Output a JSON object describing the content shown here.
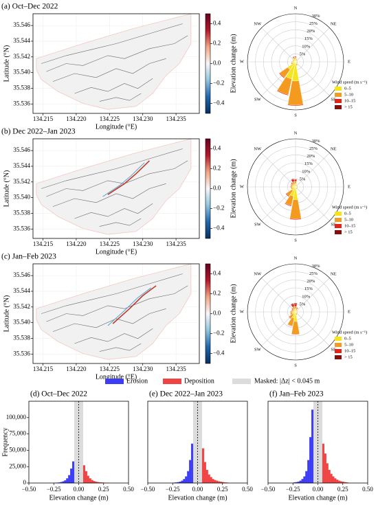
{
  "chart_data": [
    {
      "type": "map",
      "title": "(a) Oct–Dec 2022",
      "xlabel": "Longitude (°E)",
      "ylabel": "Latitude (°N)",
      "xlim": [
        134.2135,
        134.2385
      ],
      "ylim": [
        35.5348,
        35.5475
      ],
      "xticks": [
        134.215,
        {
          "value": 134.22,
          "label": "134.220"
        },
        134.225,
        {
          "value": 134.23,
          "label": "134.230"
        },
        134.235
      ],
      "yticks": [
        35.536,
        35.538,
        {
          "value": 35.54,
          "label": "35.540"
        },
        35.542,
        35.544,
        35.546
      ],
      "colorbar": {
        "label": "Elevation change (m)",
        "lim": [
          -0.5,
          0.5
        ],
        "colors": [
          "#053061",
          "#2166ac",
          "#92c5de",
          "#f7f7f7",
          "#f4a582",
          "#b2182b",
          "#67001f"
        ],
        "ticks": [
          {
            "value": -0.4,
            "label": "−0.4"
          },
          {
            "value": -0.2,
            "label": "−0.2"
          },
          {
            "value": 0,
            "label": "0.0"
          },
          0.2,
          0.4
        ]
      }
    },
    {
      "type": "map",
      "title": "(b) Dec 2022–Jan 2023",
      "xlabel": "Longitude (°E)",
      "ylabel": "Latitude (°N)",
      "xlim": [
        134.2135,
        134.2385
      ],
      "ylim": [
        35.5348,
        35.5475
      ],
      "xticks": [
        134.215,
        {
          "value": 134.22,
          "label": "134.220"
        },
        134.225,
        {
          "value": 134.23,
          "label": "134.230"
        },
        134.235
      ],
      "yticks": [
        35.536,
        35.538,
        {
          "value": 35.54,
          "label": "35.540"
        },
        35.542,
        35.544,
        35.546
      ],
      "colorbar": {
        "label": "Elevation change (m)",
        "lim": [
          -0.5,
          0.5
        ],
        "colors": [
          "#053061",
          "#2166ac",
          "#92c5de",
          "#f7f7f7",
          "#f4a582",
          "#b2182b",
          "#67001f"
        ],
        "ticks": [
          {
            "value": -0.4,
            "label": "−0.4"
          },
          {
            "value": -0.2,
            "label": "−0.2"
          },
          {
            "value": 0,
            "label": "0.0"
          },
          0.2,
          0.4
        ]
      }
    },
    {
      "type": "map",
      "title": "(c) Jan–Feb 2023",
      "xlabel": "Longitude (°E)",
      "ylabel": "Latitude (°N)",
      "xlim": [
        134.2135,
        134.2385
      ],
      "ylim": [
        35.5348,
        35.5475
      ],
      "xticks": [
        134.215,
        {
          "value": 134.22,
          "label": "134.220"
        },
        134.225,
        {
          "value": 134.23,
          "label": "134.230"
        },
        134.235
      ],
      "yticks": [
        35.536,
        35.538,
        {
          "value": 35.54,
          "label": "35.540"
        },
        35.542,
        35.544,
        35.546
      ],
      "colorbar": {
        "label": "Elevation change (m)",
        "lim": [
          -0.5,
          0.5
        ],
        "colors": [
          "#053061",
          "#2166ac",
          "#92c5de",
          "#f7f7f7",
          "#f4a582",
          "#b2182b",
          "#67001f"
        ],
        "ticks": [
          {
            "value": -0.4,
            "label": "−0.4"
          },
          {
            "value": -0.2,
            "label": "−0.2"
          },
          {
            "value": 0,
            "label": "0.0"
          },
          0.2,
          0.4
        ]
      }
    },
    {
      "type": "windrose",
      "direction_labels": [
        "N",
        "NE",
        "E",
        "SE",
        "S",
        "SW",
        "W",
        "NW"
      ],
      "rlim": [
        0,
        30
      ],
      "rticks": [
        {
          "value": 5,
          "label": "5%"
        },
        {
          "value": 10,
          "label": "10%"
        },
        {
          "value": 15,
          "label": "15%"
        },
        {
          "value": 20,
          "label": "20%"
        },
        {
          "value": 25,
          "label": "25%"
        },
        {
          "value": 30,
          "label": "30%"
        }
      ],
      "legend_title": "Wind speed (m s⁻¹)",
      "series": [
        {
          "name": "0–5",
          "color": "#f7e51c",
          "values": [
            2,
            1.5,
            1,
            1,
            1,
            1,
            1,
            1.5,
            12,
            11,
            6,
            2,
            2,
            1.5,
            1.5,
            2
          ]
        },
        {
          "name": "5–10",
          "color": "#f39a1f",
          "values": [
            1,
            0.5,
            0.5,
            0.5,
            0.5,
            0.5,
            0.5,
            1,
            15,
            10,
            6,
            1,
            0.5,
            0.5,
            0.5,
            1
          ]
        },
        {
          "name": "10–15",
          "color": "#e1241a",
          "values": [
            0.5,
            0,
            0,
            0,
            0,
            0,
            0,
            0,
            0.5,
            0.5,
            0.5,
            0,
            0,
            0,
            0,
            0.5
          ]
        },
        {
          "name": "> 15",
          "color": "#8b0a0a",
          "values": [
            0,
            0,
            0,
            0,
            0,
            0,
            0,
            0,
            0,
            0,
            0,
            0,
            0,
            0,
            0,
            0
          ]
        }
      ]
    },
    {
      "type": "windrose",
      "direction_labels": [
        "N",
        "NE",
        "E",
        "SE",
        "S",
        "SW",
        "W",
        "NW"
      ],
      "rlim": [
        0,
        30
      ],
      "rticks": [
        {
          "value": 5,
          "label": "5%"
        },
        {
          "value": 10,
          "label": "10%"
        },
        {
          "value": 15,
          "label": "15%"
        },
        {
          "value": 20,
          "label": "20%"
        },
        {
          "value": 25,
          "label": "25%"
        },
        {
          "value": 30,
          "label": "30%"
        }
      ],
      "legend_title": "Wind speed (m s⁻¹)",
      "series": [
        {
          "name": "0–5",
          "color": "#f7e51c",
          "values": [
            2,
            1,
            1,
            1,
            1,
            1,
            1,
            1,
            8,
            6,
            3,
            2,
            2,
            2,
            2,
            2
          ]
        },
        {
          "name": "5–10",
          "color": "#f39a1f",
          "values": [
            1.5,
            0.5,
            0.5,
            0.5,
            0.5,
            0.5,
            0.5,
            0.5,
            12,
            6,
            4,
            1,
            1,
            1,
            1,
            1.5
          ]
        },
        {
          "name": "10–15",
          "color": "#e1241a",
          "values": [
            1,
            0,
            0,
            0,
            0,
            0,
            0,
            0,
            0.5,
            0.5,
            0.5,
            0,
            0.3,
            0.3,
            0.5,
            1.5
          ]
        },
        {
          "name": "> 15",
          "color": "#8b0a0a",
          "values": [
            0.3,
            0,
            0,
            0,
            0,
            0,
            0,
            0,
            0,
            0,
            0,
            0,
            0,
            0,
            0,
            0.3
          ]
        }
      ]
    },
    {
      "type": "windrose",
      "direction_labels": [
        "N",
        "NE",
        "E",
        "SE",
        "S",
        "SW",
        "W",
        "NW"
      ],
      "rlim": [
        0,
        30
      ],
      "rticks": [
        {
          "value": 5,
          "label": "5%"
        },
        {
          "value": 10,
          "label": "10%"
        },
        {
          "value": 15,
          "label": "15%"
        },
        {
          "value": 20,
          "label": "20%"
        },
        {
          "value": 25,
          "label": "25%"
        },
        {
          "value": 30,
          "label": "30%"
        }
      ],
      "legend_title": "Wind speed (m s⁻¹)",
      "series": [
        {
          "name": "0–5",
          "color": "#f7e51c",
          "values": [
            2,
            1.5,
            1,
            1,
            1,
            1,
            1,
            1,
            6,
            4,
            2,
            2,
            2,
            1.5,
            1.5,
            2
          ]
        },
        {
          "name": "5–10",
          "color": "#f39a1f",
          "values": [
            1.5,
            1,
            0.5,
            0.5,
            0.5,
            0.5,
            0.5,
            1,
            8,
            5,
            3,
            1.5,
            1,
            1,
            1,
            1.5
          ]
        },
        {
          "name": "10–15",
          "color": "#e1241a",
          "values": [
            1.5,
            0.5,
            0,
            0,
            0,
            0,
            0,
            0,
            0.3,
            0.3,
            0.3,
            0,
            0.3,
            0.3,
            0.5,
            1.5
          ]
        },
        {
          "name": "> 15",
          "color": "#8b0a0a",
          "values": [
            0.5,
            0,
            0,
            0,
            0,
            0,
            0,
            0,
            0,
            0,
            0,
            0,
            0,
            0,
            0,
            0.5
          ]
        }
      ]
    },
    {
      "type": "histogram",
      "title": "(d) Oct–Dec 2022",
      "xlabel": "Elevation change (m)",
      "ylabel": "Frequency",
      "xlim": [
        -0.5,
        0.5
      ],
      "ylim": [
        0,
        125000
      ],
      "xticks": [
        {
          "value": -0.5,
          "label": "−0.50"
        },
        {
          "value": -0.25,
          "label": "−0.25"
        },
        {
          "value": 0,
          "label": "0.00"
        },
        0.25,
        {
          "value": 0.5,
          "label": "0.50"
        }
      ],
      "yticks": [
        0,
        {
          "value": 25000,
          "label": "25,000"
        },
        {
          "value": 50000,
          "label": "50,000"
        },
        {
          "value": 75000,
          "label": "75,000"
        },
        {
          "value": 100000,
          "label": "100,000"
        }
      ],
      "mask": [
        -0.045,
        0.045
      ],
      "mask_label": "Masked: |Δz| < 0.045 m",
      "reference_line": 0,
      "series": [
        {
          "name": "Erosion",
          "color": "#3d3df5",
          "bins": [
            -0.245,
            -0.225,
            -0.205,
            -0.185,
            -0.165,
            -0.145,
            -0.125,
            -0.105,
            -0.085,
            -0.065,
            -0.045
          ],
          "values": [
            300,
            500,
            800,
            1500,
            2500,
            4000,
            7000,
            12000,
            22000,
            33000
          ]
        },
        {
          "name": "Deposition",
          "color": "#f04444",
          "bins": [
            0.045,
            0.065,
            0.085,
            0.105,
            0.125,
            0.145,
            0.165,
            0.185,
            0.205,
            0.225,
            0.245,
            0.265,
            0.285,
            0.305
          ],
          "values": [
            27000,
            18000,
            11000,
            7000,
            4500,
            3000,
            2000,
            1400,
            1000,
            700,
            500,
            350,
            250
          ]
        }
      ]
    },
    {
      "type": "histogram",
      "title": "(e) Dec 2022–Jan 2023",
      "xlabel": "Elevation change (m)",
      "xlim": [
        -0.5,
        0.5
      ],
      "ylim": [
        0,
        125000
      ],
      "xticks": [
        {
          "value": -0.5,
          "label": "−0.50"
        },
        {
          "value": -0.25,
          "label": "−0.25"
        },
        {
          "value": 0,
          "label": "0.00"
        },
        0.25,
        {
          "value": 0.5,
          "label": "0.50"
        }
      ],
      "mask": [
        -0.045,
        0.045
      ],
      "reference_line": 0,
      "series": [
        {
          "name": "Erosion",
          "color": "#3d3df5",
          "bins": [
            -0.245,
            -0.225,
            -0.205,
            -0.185,
            -0.165,
            -0.145,
            -0.125,
            -0.105,
            -0.085,
            -0.065,
            -0.045
          ],
          "values": [
            500,
            800,
            1200,
            2000,
            3500,
            6000,
            10000,
            18000,
            35000,
            60000
          ]
        },
        {
          "name": "Deposition",
          "color": "#f04444",
          "bins": [
            0.045,
            0.065,
            0.085,
            0.105,
            0.125,
            0.145,
            0.165,
            0.185,
            0.205,
            0.225,
            0.245,
            0.265,
            0.285,
            0.305
          ],
          "values": [
            53000,
            32000,
            20000,
            13000,
            9000,
            6000,
            4500,
            3500,
            2500,
            1800,
            1300,
            900,
            600
          ]
        }
      ]
    },
    {
      "type": "histogram",
      "title": "(f) Jan–Feb 2023",
      "xlabel": "Elevation change (m)",
      "xlim": [
        -0.5,
        0.5
      ],
      "ylim": [
        0,
        125000
      ],
      "xticks": [
        {
          "value": -0.5,
          "label": "−0.50"
        },
        {
          "value": -0.25,
          "label": "−0.25"
        },
        {
          "value": 0,
          "label": "0.00"
        },
        0.25,
        {
          "value": 0.5,
          "label": "0.50"
        }
      ],
      "mask": [
        -0.045,
        0.045
      ],
      "reference_line": 0,
      "series": [
        {
          "name": "Erosion",
          "color": "#3d3df5",
          "bins": [
            -0.245,
            -0.225,
            -0.205,
            -0.185,
            -0.165,
            -0.145,
            -0.125,
            -0.105,
            -0.085,
            -0.065,
            -0.045
          ],
          "values": [
            800,
            1200,
            2000,
            3500,
            6000,
            10000,
            18000,
            35000,
            70000,
            112000
          ]
        },
        {
          "name": "Deposition",
          "color": "#f04444",
          "bins": [
            0.045,
            0.065,
            0.085,
            0.105,
            0.125,
            0.145,
            0.165,
            0.185,
            0.205,
            0.225,
            0.245,
            0.265,
            0.285,
            0.305
          ],
          "values": [
            60000,
            45000,
            30000,
            20000,
            14000,
            10000,
            7000,
            5000,
            3500,
            2500,
            1800,
            1200,
            800
          ]
        }
      ]
    }
  ]
}
